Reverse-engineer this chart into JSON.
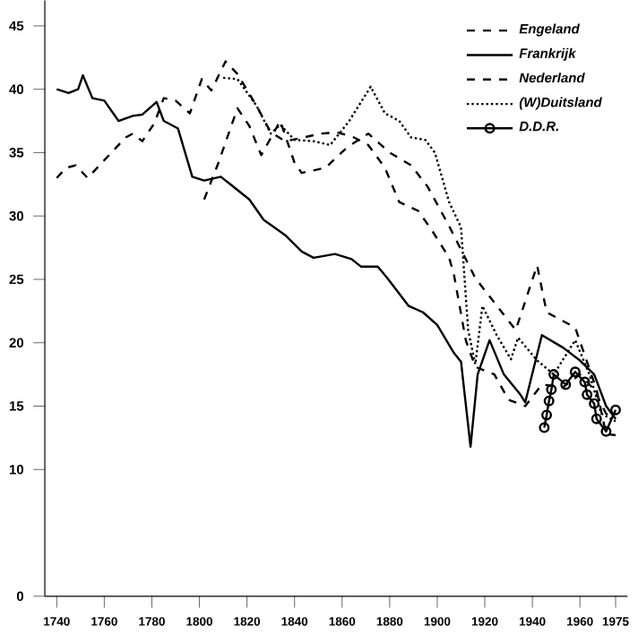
{
  "chart_data": {
    "type": "line",
    "xlim": [
      1735,
      1980
    ],
    "xticks": [
      1740,
      1760,
      1780,
      1800,
      1820,
      1840,
      1860,
      1880,
      1900,
      1920,
      1940,
      1960,
      1975
    ],
    "ylim": [
      0,
      47
    ],
    "yticks": [
      0,
      10,
      15,
      20,
      25,
      30,
      35,
      40,
      45
    ],
    "legend": "top right",
    "grid": false,
    "series": [
      {
        "name": "Engeland",
        "color": "#000000",
        "line_style": "dashed",
        "x": [
          1740,
          1744,
          1748,
          1753,
          1760,
          1769,
          1772,
          1776,
          1781,
          1785,
          1790,
          1796,
          1801,
          1805,
          1811,
          1816,
          1824,
          1830,
          1836,
          1844,
          1851,
          1858,
          1865,
          1871,
          1878,
          1884,
          1892,
          1898,
          1905,
          1907,
          1912,
          1916,
          1924,
          1930,
          1937,
          1944,
          1953,
          1960,
          1966,
          1971,
          1975
        ],
        "values": [
          33.0,
          33.8,
          34.0,
          33.0,
          34.4,
          36.2,
          36.5,
          35.9,
          37.3,
          39.3,
          39.1,
          38.1,
          40.8,
          39.9,
          42.2,
          41.2,
          38.7,
          36.6,
          35.9,
          36.2,
          36.5,
          36.6,
          36.2,
          35.6,
          33.8,
          31.1,
          30.4,
          28.8,
          26.7,
          25.4,
          20.2,
          18.1,
          17.5,
          15.5,
          15.0,
          16.7,
          16.5,
          17.5,
          16.3,
          14.4,
          14.0
        ]
      },
      {
        "name": "Frankrijk",
        "color": "#000000",
        "line_style": "solid",
        "x": [
          1740,
          1745,
          1749,
          1751,
          1755,
          1760,
          1766,
          1772,
          1776,
          1782,
          1785,
          1791,
          1797,
          1802,
          1809,
          1821,
          1827,
          1836,
          1843,
          1848,
          1857,
          1864,
          1868,
          1875,
          1879,
          1888,
          1894,
          1900,
          1907,
          1910,
          1914,
          1917,
          1922,
          1928,
          1935,
          1937,
          1944,
          1953,
          1960,
          1966,
          1971,
          1975
        ],
        "values": [
          40.0,
          39.7,
          40.0,
          41.1,
          39.3,
          39.1,
          37.5,
          37.9,
          38.0,
          39.0,
          37.5,
          36.9,
          33.1,
          32.8,
          33.1,
          31.3,
          29.7,
          28.5,
          27.2,
          26.7,
          27.0,
          26.6,
          26.0,
          26.0,
          25.1,
          22.9,
          22.4,
          21.4,
          19.2,
          18.5,
          11.8,
          17.5,
          20.2,
          17.5,
          15.9,
          15.3,
          20.6,
          19.6,
          18.6,
          17.5,
          15.0,
          14.0
        ]
      },
      {
        "name": "Nederland",
        "color": "#000000",
        "line_style": "dashed",
        "x": [
          1802,
          1808,
          1816,
          1821,
          1826,
          1834,
          1840,
          1843,
          1853,
          1862,
          1871,
          1880,
          1889,
          1896,
          1905,
          1912,
          1916,
          1933,
          1942,
          1946,
          1958,
          1967,
          1971,
          1975
        ],
        "values": [
          31.3,
          34.2,
          38.5,
          37.1,
          34.8,
          37.5,
          34.2,
          33.4,
          33.8,
          35.4,
          36.5,
          35.0,
          34.0,
          32.3,
          29.2,
          26.6,
          25.1,
          21.0,
          26.1,
          22.4,
          21.2,
          16.3,
          12.8,
          12.7
        ]
      },
      {
        "name": "(W)Duitsland",
        "color": "#000000",
        "line_style": "dotted",
        "x": [
          1810,
          1816,
          1824,
          1830,
          1834,
          1840,
          1848,
          1855,
          1863,
          1872,
          1878,
          1884,
          1889,
          1895,
          1899,
          1905,
          1910,
          1913,
          1916,
          1919,
          1925,
          1931,
          1934,
          1942,
          1949,
          1958,
          1964,
          1969,
          1975
        ],
        "values": [
          40.9,
          40.8,
          38.7,
          36.5,
          37.2,
          36.0,
          35.9,
          35.6,
          37.5,
          40.2,
          38.1,
          37.5,
          36.2,
          36.0,
          35.0,
          31.1,
          29.1,
          21.0,
          18.3,
          22.9,
          20.6,
          18.7,
          20.4,
          18.6,
          17.5,
          20.2,
          17.5,
          14.4,
          13.8
        ]
      },
      {
        "name": "D.D.R.",
        "color": "#000000",
        "line_style": "solid",
        "marker": "circle",
        "x": [
          1945,
          1946,
          1947,
          1948,
          1949,
          1954,
          1958,
          1962,
          1963,
          1966,
          1967,
          1971,
          1975
        ],
        "values": [
          13.3,
          14.3,
          15.4,
          16.3,
          17.5,
          16.7,
          17.7,
          16.9,
          15.9,
          15.2,
          14.0,
          13.0,
          14.7
        ]
      }
    ]
  }
}
